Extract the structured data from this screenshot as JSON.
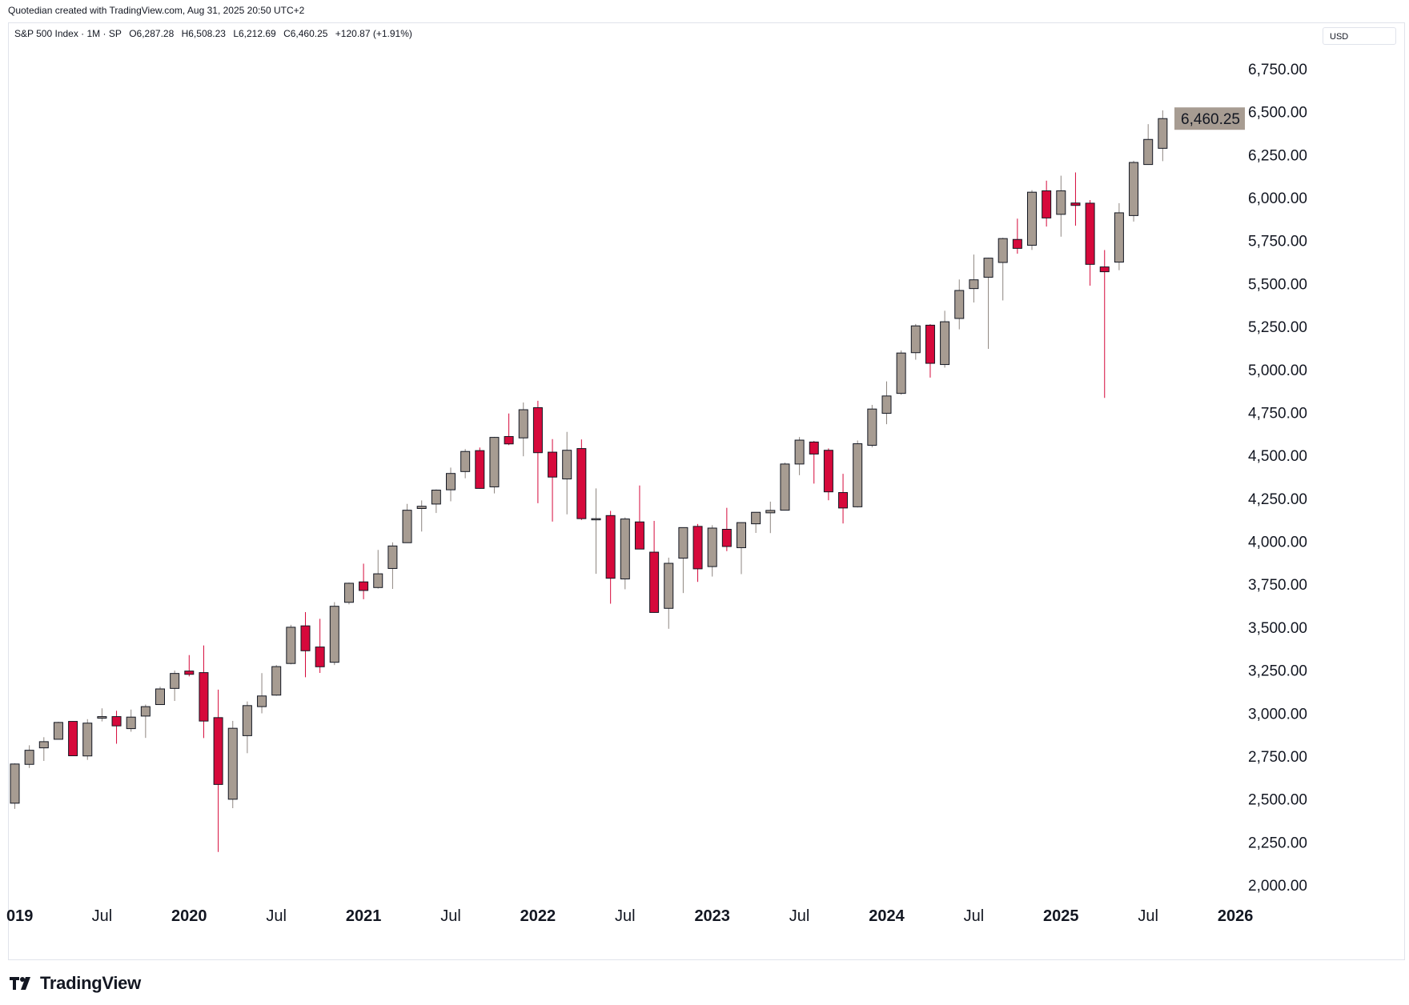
{
  "caption": "Quotedian created with TradingView.com, Aug 31, 2025 20:50 UTC+2",
  "legend": {
    "symbol": "S&P 500 Index · 1M · SP",
    "open": "O6,287.28",
    "high": "H6,508.23",
    "low": "L6,212.69",
    "close": "C6,460.25",
    "change": "+120.87 (+1.91%)"
  },
  "currency": "USD",
  "brand": "TradingView",
  "colors": {
    "up": "#a79c92",
    "down": "#d6093b",
    "wick_up": "#8e8680",
    "price_tag": "#a79c92"
  },
  "chart_data": {
    "type": "candlestick",
    "interval": "1M",
    "ylim": [
      1900,
      6950
    ],
    "y_ticks": [
      "2,000.00",
      "2,250.00",
      "2,500.00",
      "2,750.00",
      "3,000.00",
      "3,250.00",
      "3,500.00",
      "3,750.00",
      "4,000.00",
      "4,250.00",
      "4,500.00",
      "4,750.00",
      "5,000.00",
      "5,250.00",
      "5,500.00",
      "5,750.00",
      "6,000.00",
      "6,250.00",
      "6,500.00",
      "6,750.00"
    ],
    "y_tick_values": [
      2000,
      2250,
      2500,
      2750,
      3000,
      3250,
      3500,
      3750,
      4000,
      4250,
      4500,
      4750,
      5000,
      5250,
      5500,
      5750,
      6000,
      6250,
      6500,
      6750
    ],
    "x_labels": [
      {
        "label": "019",
        "index": 0,
        "year": true
      },
      {
        "label": "Jul",
        "index": 6,
        "year": false
      },
      {
        "label": "2020",
        "index": 12,
        "year": true
      },
      {
        "label": "Jul",
        "index": 18,
        "year": false
      },
      {
        "label": "2021",
        "index": 24,
        "year": true
      },
      {
        "label": "Jul",
        "index": 30,
        "year": false
      },
      {
        "label": "2022",
        "index": 36,
        "year": true
      },
      {
        "label": "Jul",
        "index": 42,
        "year": false
      },
      {
        "label": "2023",
        "index": 48,
        "year": true
      },
      {
        "label": "Jul",
        "index": 54,
        "year": false
      },
      {
        "label": "2024",
        "index": 60,
        "year": true
      },
      {
        "label": "Jul",
        "index": 66,
        "year": false
      },
      {
        "label": "2025",
        "index": 72,
        "year": true
      },
      {
        "label": "Jul",
        "index": 78,
        "year": false
      },
      {
        "label": "2026",
        "index": 84,
        "year": true
      }
    ],
    "last_price": "6,460.25",
    "last_value": 6460.25,
    "candles": [
      {
        "month": "2019-01",
        "o": 2476,
        "h": 2708,
        "l": 2443,
        "c": 2704
      },
      {
        "month": "2019-02",
        "o": 2702,
        "h": 2813,
        "l": 2681,
        "c": 2784
      },
      {
        "month": "2019-03",
        "o": 2798,
        "h": 2860,
        "l": 2722,
        "c": 2834
      },
      {
        "month": "2019-04",
        "o": 2848,
        "h": 2950,
        "l": 2848,
        "c": 2946
      },
      {
        "month": "2019-05",
        "o": 2952,
        "h": 2954,
        "l": 2751,
        "c": 2752
      },
      {
        "month": "2019-06",
        "o": 2751,
        "h": 2965,
        "l": 2728,
        "c": 2942
      },
      {
        "month": "2019-07",
        "o": 2971,
        "h": 3028,
        "l": 2952,
        "c": 2980
      },
      {
        "month": "2019-08",
        "o": 2980,
        "h": 3014,
        "l": 2822,
        "c": 2926
      },
      {
        "month": "2019-09",
        "o": 2910,
        "h": 3021,
        "l": 2892,
        "c": 2977
      },
      {
        "month": "2019-10",
        "o": 2983,
        "h": 3050,
        "l": 2856,
        "c": 3038
      },
      {
        "month": "2019-11",
        "o": 3050,
        "h": 3154,
        "l": 3050,
        "c": 3141
      },
      {
        "month": "2019-12",
        "o": 3144,
        "h": 3248,
        "l": 3071,
        "c": 3231
      },
      {
        "month": "2020-01",
        "o": 3245,
        "h": 3338,
        "l": 3214,
        "c": 3226
      },
      {
        "month": "2020-02",
        "o": 3236,
        "h": 3394,
        "l": 2855,
        "c": 2954
      },
      {
        "month": "2020-03",
        "o": 2974,
        "h": 3137,
        "l": 2192,
        "c": 2585
      },
      {
        "month": "2020-04",
        "o": 2499,
        "h": 2955,
        "l": 2447,
        "c": 2912
      },
      {
        "month": "2020-05",
        "o": 2869,
        "h": 3068,
        "l": 2767,
        "c": 3044
      },
      {
        "month": "2020-06",
        "o": 3038,
        "h": 3233,
        "l": 2999,
        "c": 3100
      },
      {
        "month": "2020-07",
        "o": 3105,
        "h": 3280,
        "l": 3101,
        "c": 3271
      },
      {
        "month": "2020-08",
        "o": 3289,
        "h": 3514,
        "l": 3284,
        "c": 3500
      },
      {
        "month": "2020-09",
        "o": 3508,
        "h": 3588,
        "l": 3209,
        "c": 3363
      },
      {
        "month": "2020-10",
        "o": 3385,
        "h": 3549,
        "l": 3234,
        "c": 3270
      },
      {
        "month": "2020-11",
        "o": 3296,
        "h": 3646,
        "l": 3280,
        "c": 3622
      },
      {
        "month": "2020-12",
        "o": 3645,
        "h": 3760,
        "l": 3633,
        "c": 3756
      },
      {
        "month": "2021-01",
        "o": 3764,
        "h": 3870,
        "l": 3663,
        "c": 3714
      },
      {
        "month": "2021-02",
        "o": 3731,
        "h": 3950,
        "l": 3725,
        "c": 3811
      },
      {
        "month": "2021-03",
        "o": 3842,
        "h": 3994,
        "l": 3723,
        "c": 3973
      },
      {
        "month": "2021-04",
        "o": 3992,
        "h": 4218,
        "l": 3992,
        "c": 4181
      },
      {
        "month": "2021-05",
        "o": 4191,
        "h": 4238,
        "l": 4057,
        "c": 4204
      },
      {
        "month": "2021-06",
        "o": 4217,
        "h": 4302,
        "l": 4165,
        "c": 4298
      },
      {
        "month": "2021-07",
        "o": 4300,
        "h": 4429,
        "l": 4233,
        "c": 4395
      },
      {
        "month": "2021-08",
        "o": 4406,
        "h": 4537,
        "l": 4367,
        "c": 4523
      },
      {
        "month": "2021-09",
        "o": 4528,
        "h": 4546,
        "l": 4306,
        "c": 4308
      },
      {
        "month": "2021-10",
        "o": 4317,
        "h": 4608,
        "l": 4279,
        "c": 4605
      },
      {
        "month": "2021-11",
        "o": 4610,
        "h": 4744,
        "l": 4560,
        "c": 4567
      },
      {
        "month": "2021-12",
        "o": 4602,
        "h": 4808,
        "l": 4495,
        "c": 4766
      },
      {
        "month": "2022-01",
        "o": 4778,
        "h": 4818,
        "l": 4222,
        "c": 4516
      },
      {
        "month": "2022-02",
        "o": 4519,
        "h": 4595,
        "l": 4115,
        "c": 4374
      },
      {
        "month": "2022-03",
        "o": 4363,
        "h": 4637,
        "l": 4157,
        "c": 4530
      },
      {
        "month": "2022-04",
        "o": 4540,
        "h": 4593,
        "l": 4124,
        "c": 4132
      },
      {
        "month": "2022-05",
        "o": 4131,
        "h": 4308,
        "l": 3811,
        "c": 4132
      },
      {
        "month": "2022-06",
        "o": 4150,
        "h": 4177,
        "l": 3637,
        "c": 3785
      },
      {
        "month": "2022-07",
        "o": 3781,
        "h": 4140,
        "l": 3721,
        "c": 4130
      },
      {
        "month": "2022-08",
        "o": 4113,
        "h": 4325,
        "l": 3955,
        "c": 3955
      },
      {
        "month": "2022-09",
        "o": 3937,
        "h": 4119,
        "l": 3584,
        "c": 3586
      },
      {
        "month": "2022-10",
        "o": 3610,
        "h": 3905,
        "l": 3491,
        "c": 3872
      },
      {
        "month": "2022-11",
        "o": 3902,
        "h": 4080,
        "l": 3699,
        "c": 4080
      },
      {
        "month": "2022-12",
        "o": 4087,
        "h": 4101,
        "l": 3764,
        "c": 3840
      },
      {
        "month": "2023-01",
        "o": 3853,
        "h": 4094,
        "l": 3795,
        "c": 4077
      },
      {
        "month": "2023-02",
        "o": 4070,
        "h": 4195,
        "l": 3943,
        "c": 3970
      },
      {
        "month": "2023-03",
        "o": 3963,
        "h": 4110,
        "l": 3809,
        "c": 4109
      },
      {
        "month": "2023-04",
        "o": 4102,
        "h": 4170,
        "l": 4049,
        "c": 4169
      },
      {
        "month": "2023-05",
        "o": 4166,
        "h": 4231,
        "l": 4048,
        "c": 4180
      },
      {
        "month": "2023-06",
        "o": 4181,
        "h": 4458,
        "l": 4181,
        "c": 4450
      },
      {
        "month": "2023-07",
        "o": 4450,
        "h": 4607,
        "l": 4385,
        "c": 4589
      },
      {
        "month": "2023-08",
        "o": 4578,
        "h": 4584,
        "l": 4336,
        "c": 4508
      },
      {
        "month": "2023-09",
        "o": 4530,
        "h": 4541,
        "l": 4239,
        "c": 4288
      },
      {
        "month": "2023-10",
        "o": 4284,
        "h": 4393,
        "l": 4104,
        "c": 4194
      },
      {
        "month": "2023-11",
        "o": 4201,
        "h": 4587,
        "l": 4197,
        "c": 4568
      },
      {
        "month": "2023-12",
        "o": 4559,
        "h": 4794,
        "l": 4547,
        "c": 4770
      },
      {
        "month": "2024-01",
        "o": 4745,
        "h": 4931,
        "l": 4682,
        "c": 4846
      },
      {
        "month": "2024-02",
        "o": 4861,
        "h": 5111,
        "l": 4853,
        "c": 5096
      },
      {
        "month": "2024-03",
        "o": 5098,
        "h": 5265,
        "l": 5057,
        "c": 5254
      },
      {
        "month": "2024-04",
        "o": 5258,
        "h": 5264,
        "l": 4953,
        "c": 5036
      },
      {
        "month": "2024-05",
        "o": 5029,
        "h": 5342,
        "l": 5011,
        "c": 5278
      },
      {
        "month": "2024-06",
        "o": 5297,
        "h": 5524,
        "l": 5234,
        "c": 5460
      },
      {
        "month": "2024-07",
        "o": 5471,
        "h": 5669,
        "l": 5390,
        "c": 5522
      },
      {
        "month": "2024-08",
        "o": 5537,
        "h": 5651,
        "l": 5120,
        "c": 5648
      },
      {
        "month": "2024-09",
        "o": 5623,
        "h": 5767,
        "l": 5402,
        "c": 5762
      },
      {
        "month": "2024-10",
        "o": 5757,
        "h": 5878,
        "l": 5674,
        "c": 5705
      },
      {
        "month": "2024-11",
        "o": 5723,
        "h": 6044,
        "l": 5696,
        "c": 6032
      },
      {
        "month": "2024-12",
        "o": 6040,
        "h": 6099,
        "l": 5832,
        "c": 5882
      },
      {
        "month": "2025-01",
        "o": 5903,
        "h": 6128,
        "l": 5773,
        "c": 6040
      },
      {
        "month": "2025-02",
        "o": 5969,
        "h": 6147,
        "l": 5837,
        "c": 5955
      },
      {
        "month": "2025-03",
        "o": 5968,
        "h": 5986,
        "l": 5488,
        "c": 5612
      },
      {
        "month": "2025-04",
        "o": 5597,
        "h": 5695,
        "l": 4835,
        "c": 5569
      },
      {
        "month": "2025-05",
        "o": 5625,
        "h": 5968,
        "l": 5578,
        "c": 5912
      },
      {
        "month": "2025-06",
        "o": 5896,
        "h": 6215,
        "l": 5861,
        "c": 6205
      },
      {
        "month": "2025-07",
        "o": 6193,
        "h": 6428,
        "l": 6191,
        "c": 6339
      },
      {
        "month": "2025-08",
        "o": 6287.28,
        "h": 6508.23,
        "l": 6212.69,
        "c": 6460.25
      }
    ]
  }
}
